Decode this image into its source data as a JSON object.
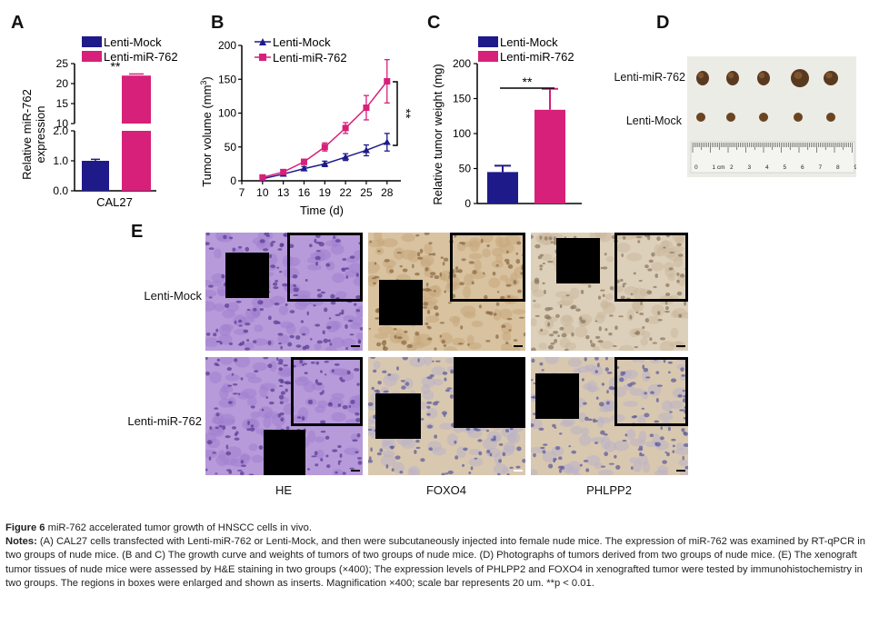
{
  "panels": {
    "A": {
      "letter": "A",
      "legend": [
        "Lenti-Mock",
        "Lenti-miR-762"
      ],
      "ylabel_line1": "Relative miR-762",
      "ylabel_line2": "expression",
      "xlabel": "CAL27",
      "sig": "**"
    },
    "B": {
      "letter": "B",
      "legend": [
        "Lenti-Mock",
        "Lenti-miR-762"
      ],
      "ylabel": "Tumor volume (mm",
      "ylabel_sup": "3",
      "ylabel_end": ")",
      "xlabel": "Time (d)",
      "sig": "**"
    },
    "C": {
      "letter": "C",
      "legend": [
        "Lenti-Mock",
        "Lenti-miR-762"
      ],
      "ylabel": "Relative tumor weight (mg)",
      "sig": "**"
    },
    "D": {
      "letter": "D",
      "row_labels": [
        "Lenti-miR-762",
        "Lenti-Mock"
      ],
      "ruler_numbers": [
        "0",
        "1 cm",
        "2",
        "3",
        "4",
        "5",
        "6",
        "7",
        "8",
        "9"
      ]
    },
    "E": {
      "letter": "E",
      "row_labels": [
        "Lenti-Mock",
        "Lenti-miR-762"
      ],
      "col_labels": [
        "HE",
        "FOXO4",
        "PHLPP2"
      ]
    }
  },
  "colors": {
    "mock": "#1f1a8a",
    "mir762": "#d6207a",
    "he_tissue": "#9b7cc9",
    "ihc_tissue": "#c9ad86",
    "ihc_blue": "#8f93bf"
  },
  "chart_data": [
    {
      "type": "bar",
      "panel": "A",
      "categories": [
        "CAL27"
      ],
      "series": [
        {
          "name": "Lenti-Mock",
          "values": [
            1.0
          ],
          "error": [
            0.05
          ]
        },
        {
          "name": "Lenti-miR-762",
          "values": [
            22.0
          ],
          "error": [
            0.4
          ]
        }
      ],
      "xlabel": "CAL27",
      "ylabel": "Relative miR-762 expression",
      "y_broken": true,
      "ylim_lower": [
        0,
        2
      ],
      "ylim_upper": [
        10,
        25
      ],
      "yticks_lower": [
        "0.0",
        "1.0",
        "2.0"
      ],
      "yticks_upper": [
        "10",
        "15",
        "20",
        "25"
      ],
      "annotation": "**"
    },
    {
      "type": "line",
      "panel": "B",
      "x": [
        10,
        13,
        16,
        19,
        22,
        25,
        28
      ],
      "series": [
        {
          "name": "Lenti-Mock",
          "values": [
            3,
            10,
            18,
            25,
            35,
            45,
            57
          ],
          "error": [
            2,
            2,
            3,
            4,
            5,
            8,
            13
          ]
        },
        {
          "name": "Lenti-miR-762",
          "values": [
            5,
            13,
            28,
            50,
            78,
            108,
            147
          ],
          "error": [
            2,
            3,
            4,
            6,
            8,
            18,
            32
          ]
        }
      ],
      "xlabel": "Time (d)",
      "ylabel": "Tumor volume (mm3)",
      "xticks": [
        "7",
        "10",
        "13",
        "16",
        "19",
        "22",
        "25",
        "28"
      ],
      "yticks": [
        "0",
        "50",
        "100",
        "150",
        "200"
      ],
      "xlim": [
        7,
        30
      ],
      "ylim": [
        0,
        200
      ],
      "annotation": "**"
    },
    {
      "type": "bar",
      "panel": "C",
      "categories": [
        "Lenti-Mock",
        "Lenti-miR-762"
      ],
      "values": [
        45,
        134
      ],
      "error": [
        9,
        30
      ],
      "ylabel": "Relative tumor weight (mg)",
      "yticks": [
        "0",
        "50",
        "100",
        "150",
        "200"
      ],
      "ylim": [
        0,
        200
      ],
      "annotation": "**"
    }
  ],
  "caption": {
    "figure_label": "Figure 6",
    "figure_title": " miR-762 accelerated tumor growth of HNSCC cells in vivo.",
    "notes_label": "Notes: ",
    "notes_text": "(A) CAL27 cells transfected with Lenti-miR-762 or Lenti-Mock, and then were subcutaneously injected into female nude mice. The expression of miR-762 was examined by RT-qPCR in two groups of nude mice. (B and C) The growth curve and weights of tumors of two groups of nude mice. (D) Photographs of tumors derived from two groups of nude mice. (E) The xenograft tumor tissues of nude mice were assessed by H&E staining in two groups (×400); The expression levels of PHLPP2 and FOXO4 in xenografted tumor were tested by immunohistochemistry in two groups. The regions in boxes were enlarged and shown as inserts. Magnification ×400; scale bar represents 20 um. **p < 0.01."
  }
}
